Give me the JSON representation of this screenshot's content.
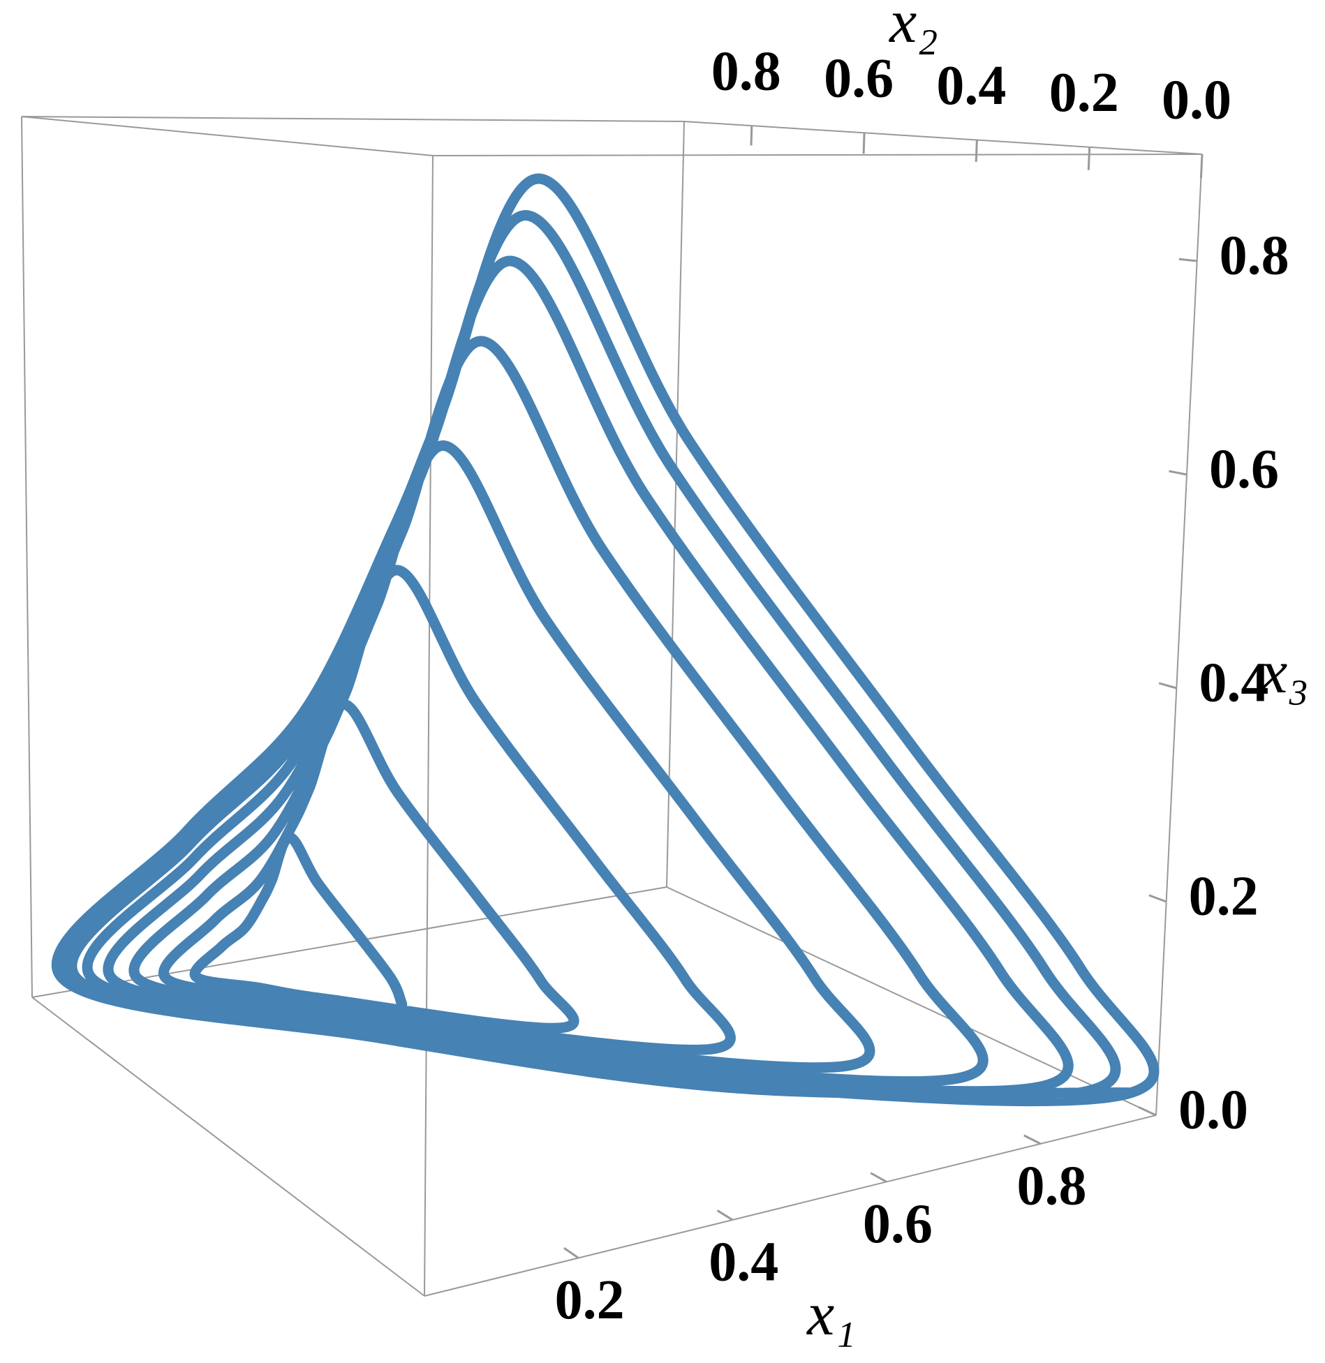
{
  "chart_data": {
    "type": "line3d",
    "xlabel": "x₁",
    "ylabel": "x₂",
    "zlabel": "x₃",
    "xlim": [
      0,
      0.95
    ],
    "ylim": [
      0,
      0.92
    ],
    "zlim": [
      0,
      0.9
    ],
    "xticks": [
      0.2,
      0.4,
      0.6,
      0.8
    ],
    "yticks": [
      {
        "value": 0,
        "label": "0.0"
      },
      0.2,
      0.4,
      0.6,
      0.8
    ],
    "zticks": [
      {
        "value": 0,
        "label": "0.0"
      },
      0.2,
      0.4,
      0.6,
      0.8
    ],
    "box_color": "#999999",
    "series": [
      {
        "color": "#4682b4",
        "x": [
          0.266,
          0.25,
          0.204,
          0.146,
          0.11,
          0.088,
          0.084,
          0.084,
          0.084,
          0.084,
          0.14,
          0.2,
          0.415,
          0.385,
          0.298,
          0.187,
          0.119,
          0.077,
          0.07,
          0.07,
          0.07,
          0.07,
          0.176,
          0.29,
          0.557,
          0.513,
          0.386,
          0.227,
          0.128,
          0.067,
          0.056,
          0.056,
          0.056,
          0.056,
          0.21,
          0.375,
          0.681,
          0.625,
          0.464,
          0.261,
          0.135,
          0.058,
          0.044,
          0.044,
          0.044,
          0.044,
          0.24,
          0.45,
          0.781,
          0.715,
          0.526,
          0.289,
          0.141,
          0.051,
          0.034,
          0.034,
          0.034,
          0.034,
          0.264,
          0.51,
          0.855,
          0.783,
          0.573,
          0.309,
          0.146,
          0.045,
          0.027,
          0.027,
          0.027,
          0.027,
          0.282,
          0.555,
          0.897,
          0.82,
          0.599,
          0.321,
          0.148,
          0.042,
          0.023,
          0.023,
          0.023,
          0.023,
          0.292,
          0.58,
          0.93,
          0.85,
          0.62,
          0.33,
          0.15,
          0.04,
          0.02,
          0.02,
          0.02,
          0.02,
          0.3,
          0.6,
          0.93
        ],
        "y": [
          0.5,
          0.498,
          0.498,
          0.498,
          0.502,
          0.506,
          0.52,
          0.56,
          0.614,
          0.672,
          0.616,
          0.556,
          0.392,
          0.388,
          0.388,
          0.388,
          0.396,
          0.403,
          0.43,
          0.506,
          0.609,
          0.719,
          0.612,
          0.498,
          0.29,
          0.284,
          0.284,
          0.284,
          0.295,
          0.306,
          0.345,
          0.455,
          0.604,
          0.763,
          0.609,
          0.444,
          0.2,
          0.193,
          0.193,
          0.193,
          0.207,
          0.221,
          0.27,
          0.41,
          0.599,
          0.802,
          0.606,
          0.396,
          0.128,
          0.12,
          0.12,
          0.12,
          0.136,
          0.153,
          0.21,
          0.374,
          0.595,
          0.833,
          0.604,
          0.358,
          0.074,
          0.065,
          0.065,
          0.065,
          0.083,
          0.101,
          0.165,
          0.347,
          0.593,
          0.857,
          0.602,
          0.329,
          0.044,
          0.034,
          0.034,
          0.034,
          0.054,
          0.073,
          0.14,
          0.332,
          0.591,
          0.87,
          0.601,
          0.313,
          0.02,
          0.01,
          0.01,
          0.01,
          0.03,
          0.05,
          0.12,
          0.32,
          0.59,
          0.88,
          0.6,
          0.3,
          0.02
        ],
        "z": [
          0.084,
          0.11,
          0.156,
          0.212,
          0.256,
          0.218,
          0.198,
          0.162,
          0.13,
          0.086,
          0.084,
          0.082,
          0.07,
          0.119,
          0.206,
          0.313,
          0.396,
          0.324,
          0.286,
          0.218,
          0.157,
          0.073,
          0.07,
          0.066,
          0.056,
          0.128,
          0.254,
          0.408,
          0.529,
          0.425,
          0.37,
          0.271,
          0.183,
          0.062,
          0.056,
          0.051,
          0.044,
          0.135,
          0.296,
          0.492,
          0.646,
          0.513,
          0.443,
          0.317,
          0.205,
          0.051,
          0.044,
          0.037,
          0.034,
          0.141,
          0.33,
          0.559,
          0.74,
          0.584,
          0.502,
          0.354,
          0.223,
          0.043,
          0.034,
          0.026,
          0.027,
          0.146,
          0.355,
          0.61,
          0.81,
          0.637,
          0.546,
          0.382,
          0.237,
          0.036,
          0.027,
          0.018,
          0.023,
          0.148,
          0.369,
          0.638,
          0.849,
          0.666,
          0.57,
          0.398,
          0.244,
          0.033,
          0.023,
          0.014,
          0.02,
          0.15,
          0.38,
          0.66,
          0.88,
          0.69,
          0.59,
          0.41,
          0.25,
          0.03,
          0.02,
          0.01,
          0.02
        ]
      }
    ]
  }
}
